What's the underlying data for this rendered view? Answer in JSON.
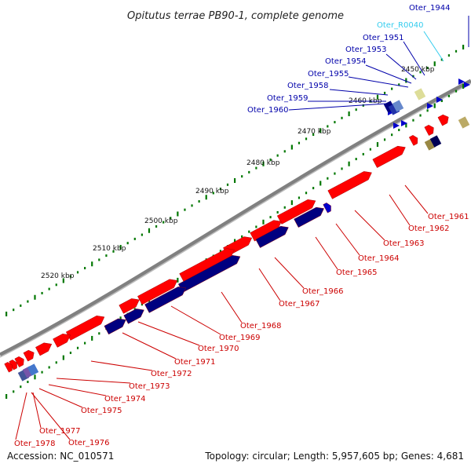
{
  "title": "Opitutus terrae PB90-1, complete genome",
  "accession": "Accession: NC_010571",
  "summary": "Topology: circular; Length: 5,957,605 bp; Genes: 4,681",
  "colors": {
    "forward": "#ff0000",
    "reverse": "#0000cc",
    "reverse_dark": "#000080",
    "rna": "#33ccee",
    "backbone": "#808080",
    "ticks": "#007700",
    "label_forward": "#cc0000",
    "label_reverse": "#0000aa"
  },
  "scale_labels": [
    "2450 kbp",
    "2460 kbp",
    "2470 kbp",
    "2480 kbp",
    "2490 kbp",
    "2500 kbp",
    "2510 kbp",
    "2520 kbp"
  ],
  "upper_labels": [
    "Oter_1944",
    "Oter_R0040",
    "Oter_1951",
    "Oter_1953",
    "Oter_1954",
    "Oter_1955",
    "Oter_1958",
    "Oter_1959",
    "Oter_1960"
  ],
  "lower_labels": [
    "Oter_1961",
    "Oter_1962",
    "Oter_1963",
    "Oter_1964",
    "Oter_1965",
    "Oter_1966",
    "Oter_1967",
    "Oter_1968",
    "Oter_1969",
    "Oter_1970",
    "Oter_1971",
    "Oter_1972",
    "Oter_1973",
    "Oter_1974",
    "Oter_1975",
    "Oter_1976",
    "Oter_1977",
    "Oter_1978"
  ]
}
